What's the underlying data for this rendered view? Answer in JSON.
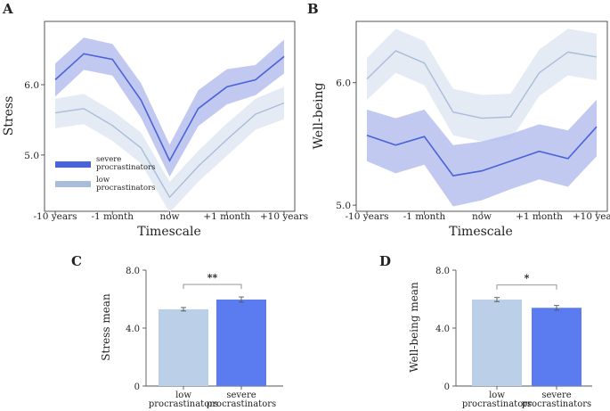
{
  "panels": {
    "a": {
      "letter": "A"
    },
    "b": {
      "letter": "B"
    },
    "c": {
      "letter": "C"
    },
    "d": {
      "letter": "D"
    }
  },
  "legend": {
    "severe_line1": "severe",
    "severe_line2": "procrastinators",
    "low_line1": "low",
    "low_line2": "procrastinators"
  },
  "colors": {
    "severe": "#4a63d8",
    "severe_band": "#b6c0ef",
    "low": "#a9bcd9",
    "low_band": "#e1e8f3",
    "bar_low": "#bccfe8",
    "bar_severe": "#5b7cf0"
  },
  "chart_data": [
    {
      "id": "A",
      "type": "line",
      "title": "",
      "xlabel": "Timescale",
      "ylabel": "Stress",
      "ylim": [
        4.2,
        6.9
      ],
      "yticks": [
        5.0,
        6.0
      ],
      "ytick_labels": [
        "5.0",
        "6.0"
      ],
      "xtick_labels": [
        "-10 years",
        "-1 month",
        "now",
        "+1 month",
        "+10 years"
      ],
      "xtick_positions": [
        0,
        2,
        4,
        6,
        8
      ],
      "x": [
        0,
        1,
        2,
        3,
        4,
        5,
        6,
        7,
        8
      ],
      "series": [
        {
          "name": "severe procrastinators",
          "values": [
            6.07,
            6.44,
            6.36,
            5.78,
            4.92,
            5.66,
            5.97,
            6.07,
            6.4
          ],
          "upper": [
            6.3,
            6.67,
            6.58,
            6.02,
            5.15,
            5.92,
            6.22,
            6.28,
            6.64
          ],
          "lower": [
            5.83,
            6.21,
            6.13,
            5.53,
            4.69,
            5.41,
            5.72,
            5.85,
            6.16
          ]
        },
        {
          "name": "low procrastinators",
          "values": [
            5.6,
            5.66,
            5.42,
            5.1,
            4.4,
            4.84,
            5.22,
            5.58,
            5.74
          ],
          "upper": [
            5.8,
            5.87,
            5.63,
            5.32,
            4.62,
            5.06,
            5.45,
            5.8,
            5.97
          ],
          "lower": [
            5.38,
            5.44,
            5.2,
            4.88,
            4.18,
            4.62,
            4.99,
            5.36,
            5.51
          ]
        }
      ]
    },
    {
      "id": "B",
      "type": "line",
      "title": "",
      "xlabel": "Timescale",
      "ylabel": "Well-being",
      "ylim": [
        4.95,
        6.5
      ],
      "yticks": [
        5.0,
        6.0
      ],
      "ytick_labels": [
        "5.0",
        "6.0"
      ],
      "xtick_labels": [
        "-10 years",
        "-1 month",
        "now",
        "+1 month",
        "+10 years"
      ],
      "xtick_positions": [
        0,
        2,
        4,
        6,
        8
      ],
      "x": [
        0,
        1,
        2,
        3,
        4,
        5,
        6,
        7,
        8
      ],
      "series": [
        {
          "name": "severe procrastinators",
          "values": [
            5.57,
            5.49,
            5.56,
            5.24,
            5.28,
            5.36,
            5.44,
            5.38,
            5.64
          ],
          "upper": [
            5.78,
            5.71,
            5.78,
            5.49,
            5.52,
            5.58,
            5.66,
            5.61,
            5.86
          ],
          "lower": [
            5.36,
            5.26,
            5.33,
            4.99,
            5.04,
            5.13,
            5.21,
            5.15,
            5.4
          ]
        },
        {
          "name": "low procrastinators",
          "values": [
            6.03,
            6.26,
            6.16,
            5.76,
            5.71,
            5.72,
            6.08,
            6.25,
            6.21
          ],
          "upper": [
            6.2,
            6.44,
            6.34,
            5.95,
            5.9,
            5.91,
            6.27,
            6.44,
            6.4
          ],
          "lower": [
            5.86,
            6.08,
            5.98,
            5.57,
            5.52,
            5.53,
            5.89,
            6.06,
            6.02
          ]
        }
      ]
    },
    {
      "id": "C",
      "type": "bar",
      "ylabel": "Stress mean",
      "xlabel": "",
      "ylim": [
        0,
        8.0
      ],
      "yticks": [
        0,
        4.0,
        8.0
      ],
      "ytick_labels": [
        "0",
        "4.0",
        "8.0"
      ],
      "categories": [
        "low procrastinators",
        "severe procrastinators"
      ],
      "category_lines": [
        [
          "low",
          "procrastinators"
        ],
        [
          "severe",
          "procrastinators"
        ]
      ],
      "values": [
        5.3,
        5.97
      ],
      "errors": [
        0.12,
        0.18
      ],
      "significance": "**"
    },
    {
      "id": "D",
      "type": "bar",
      "ylabel": "Well-being mean",
      "xlabel": "",
      "ylim": [
        0,
        8.0
      ],
      "yticks": [
        0,
        4.0,
        8.0
      ],
      "ytick_labels": [
        "0",
        "4.0",
        "8.0"
      ],
      "categories": [
        "low procrastinators",
        "severe procrastinators"
      ],
      "category_lines": [
        [
          "low",
          "procrastinators"
        ],
        [
          "severe",
          "procrastinators"
        ]
      ],
      "values": [
        5.97,
        5.4
      ],
      "errors": [
        0.14,
        0.16
      ],
      "significance": "*"
    }
  ]
}
